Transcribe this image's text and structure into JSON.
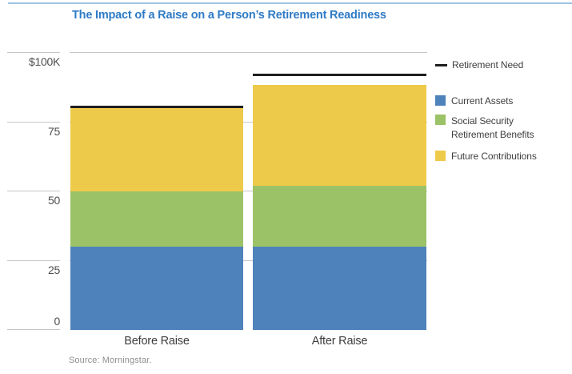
{
  "title": "The Impact of a Raise on a Person’s Retirement Readiness",
  "source": "Source: Morningstar.",
  "colors": {
    "title_blue": "#2e7bc6",
    "top_rule_blue": "#9ec4e4",
    "grid_gray": "#c6c6c6",
    "axis_text": "#4d4d4d",
    "category_text": "#3d3d3d",
    "legend_text": "#3f3f3f",
    "source_text": "#8f8f8f"
  },
  "legend": {
    "position": "right",
    "entries": [
      "Retirement Need",
      "Current Assets",
      "Social Security Retirement Benefits",
      "Future Contributions"
    ]
  },
  "chart_data": {
    "type": "bar",
    "stacked": true,
    "title": "The Impact of a Raise on a Person’s Retirement Readiness",
    "categories": [
      "Before Raise",
      "After Raise"
    ],
    "series": [
      {
        "name": "Current Assets",
        "color": "#4e82bb",
        "values": [
          30,
          30
        ]
      },
      {
        "name": "Social Security Retirement Benefits",
        "color": "#9bc266",
        "values": [
          20,
          22
        ]
      },
      {
        "name": "Future Contributions",
        "color": "#eeca4b",
        "values": [
          30,
          36.5
        ]
      }
    ],
    "retirement_need": {
      "name": "Retirement Need",
      "color": "#1f1f1f",
      "values": [
        80.5,
        92
      ]
    },
    "totals": [
      80,
      88.5
    ],
    "ylim": [
      0,
      100
    ],
    "yticks": [
      {
        "label": "$100K",
        "value": 100
      },
      {
        "label": "75",
        "value": 75
      },
      {
        "label": "50",
        "value": 50
      },
      {
        "label": "25",
        "value": 25
      },
      {
        "label": "0",
        "value": 0
      }
    ],
    "grid": true,
    "legend_position": "right"
  }
}
